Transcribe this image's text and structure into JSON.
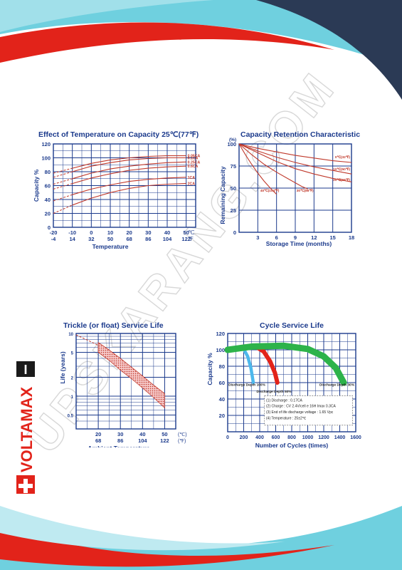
{
  "brand": {
    "name": "VOLTAMAX",
    "badge": "I",
    "watermark": "UPSKARANG.COM",
    "colors": {
      "red": "#e2231a",
      "navy": "#2b3a55",
      "cyan": "#6fd0df",
      "grid": "#1b3a8c",
      "curve": "#c0392b"
    }
  },
  "chart_data": [
    {
      "type": "line",
      "title": "Effect of Temperature on Capacity  25℃(77℉)",
      "ylabel": "Capacity %",
      "xlabel": "Temperature",
      "x_ticks_c": [
        "-20",
        "-10",
        "0",
        "10",
        "20",
        "30",
        "40",
        "50"
      ],
      "x_ticks_f": [
        "-4",
        "14",
        "32",
        "50",
        "68",
        "86",
        "104",
        "122"
      ],
      "x_unit_c": "℃",
      "x_unit_f": "℉",
      "xlim": [
        -20,
        55
      ],
      "ylim": [
        0,
        120
      ],
      "y_ticks": [
        "0",
        "20",
        "40",
        "60",
        "80",
        "100",
        "120"
      ],
      "series": [
        {
          "name": "0.05CA",
          "values": [
            [
              -20,
              78
            ],
            [
              -10,
              85
            ],
            [
              0,
              92
            ],
            [
              10,
              97
            ],
            [
              20,
              100
            ],
            [
              30,
              102
            ],
            [
              40,
              103
            ],
            [
              50,
              103
            ]
          ]
        },
        {
          "name": "0.1CA",
          "values": [
            [
              -20,
              72
            ],
            [
              -10,
              80
            ],
            [
              0,
              88
            ],
            [
              10,
              93
            ],
            [
              20,
              97
            ],
            [
              30,
              99
            ],
            [
              40,
              100
            ],
            [
              50,
              100
            ]
          ]
        },
        {
          "name": "0.25CA",
          "values": [
            [
              -20,
              62
            ],
            [
              -10,
              70
            ],
            [
              0,
              78
            ],
            [
              10,
              84
            ],
            [
              20,
              88
            ],
            [
              30,
              91
            ],
            [
              40,
              93
            ],
            [
              50,
              94
            ]
          ]
        },
        {
          "name": "0.6CA",
          "values": [
            [
              -20,
              55
            ],
            [
              -10,
              63
            ],
            [
              0,
              71
            ],
            [
              10,
              77
            ],
            [
              20,
              82
            ],
            [
              30,
              85
            ],
            [
              40,
              87
            ],
            [
              50,
              88
            ]
          ]
        },
        {
          "name": "1CA",
          "values": [
            [
              -20,
              38
            ],
            [
              -10,
              47
            ],
            [
              0,
              55
            ],
            [
              10,
              61
            ],
            [
              20,
              66
            ],
            [
              30,
              69
            ],
            [
              40,
              71
            ],
            [
              50,
              72
            ]
          ]
        },
        {
          "name": "2CA",
          "values": [
            [
              -20,
              20
            ],
            [
              -10,
              32
            ],
            [
              0,
              42
            ],
            [
              10,
              50
            ],
            [
              20,
              56
            ],
            [
              30,
              60
            ],
            [
              40,
              62
            ],
            [
              50,
              63
            ]
          ]
        }
      ]
    },
    {
      "type": "line",
      "title": "Capacity Retention Characteristic",
      "ylabel": "Remaining Capacity",
      "y_unit": "(%)",
      "xlabel": "Storage Time (months)",
      "x_ticks": [
        "0",
        "3",
        "6",
        "9",
        "12",
        "15",
        "18"
      ],
      "xlim": [
        0,
        18
      ],
      "ylim": [
        0,
        100
      ],
      "y_ticks": [
        "0",
        "25",
        "50",
        "75",
        "100"
      ],
      "series": [
        {
          "name": "0℃(32℉)",
          "values": [
            [
              0,
              100
            ],
            [
              3,
              95
            ],
            [
              6,
              91
            ],
            [
              9,
              87
            ],
            [
              12,
              84
            ],
            [
              15,
              81
            ],
            [
              18,
              79
            ]
          ]
        },
        {
          "name": "10℃(50℉)",
          "values": [
            [
              0,
              100
            ],
            [
              3,
              92
            ],
            [
              6,
              85
            ],
            [
              9,
              79
            ],
            [
              12,
              74
            ],
            [
              15,
              70
            ],
            [
              18,
              66
            ]
          ]
        },
        {
          "name": "20℃(68℉)",
          "values": [
            [
              0,
              100
            ],
            [
              3,
              90
            ],
            [
              6,
              80
            ],
            [
              9,
              72
            ],
            [
              12,
              66
            ],
            [
              15,
              61
            ],
            [
              18,
              57
            ]
          ]
        },
        {
          "name": "30℃(86℉)",
          "values": [
            [
              0,
              100
            ],
            [
              2,
              88
            ],
            [
              4,
              77
            ],
            [
              6,
              68
            ],
            [
              8,
              60
            ],
            [
              10,
              52
            ],
            [
              11,
              49
            ]
          ]
        },
        {
          "name": "40℃(104℉)",
          "values": [
            [
              0,
              100
            ],
            [
              1,
              88
            ],
            [
              2,
              77
            ],
            [
              3,
              67
            ],
            [
              4,
              58
            ],
            [
              5,
              50
            ],
            [
              6,
              43
            ]
          ]
        }
      ]
    },
    {
      "type": "area",
      "title": "Trickle (or float) Service Life",
      "ylabel": "Life (years)",
      "xlabel": "Ambient Temperature",
      "x_ticks_c": [
        "20",
        "30",
        "40",
        "50"
      ],
      "x_ticks_f": [
        "68",
        "86",
        "104",
        "122"
      ],
      "x_unit_c": "(℃)",
      "x_unit_f": "(℉)",
      "xlim": [
        10,
        55
      ],
      "ylim": [
        0.3,
        10
      ],
      "log_scale": true,
      "y_ticks": [
        "0.5",
        "1",
        "2",
        "5",
        "10"
      ],
      "band_upper": [
        [
          20,
          7.2
        ],
        [
          25,
          5.4
        ],
        [
          30,
          4.0
        ],
        [
          35,
          2.9
        ],
        [
          40,
          2.1
        ],
        [
          45,
          1.5
        ],
        [
          50,
          1.1
        ]
      ],
      "band_lower": [
        [
          20,
          5.0
        ],
        [
          25,
          3.7
        ],
        [
          30,
          2.6
        ],
        [
          35,
          1.9
        ],
        [
          40,
          1.35
        ],
        [
          45,
          0.95
        ],
        [
          50,
          0.65
        ]
      ],
      "dashed": [
        [
          10,
          9.5
        ],
        [
          20,
          6.5
        ]
      ]
    },
    {
      "type": "line",
      "title": "Cycle Service Life",
      "ylabel": "Capacity %",
      "xlabel": "Number of Cycles (times)",
      "x_ticks": [
        "0",
        "200",
        "400",
        "600",
        "800",
        "1000",
        "1200",
        "1400",
        "1600"
      ],
      "xlim": [
        0,
        1600
      ],
      "ylim": [
        0,
        120
      ],
      "y_ticks": [
        "20",
        "40",
        "60",
        "80",
        "100",
        "120"
      ],
      "series": [
        {
          "name": "Discharge Depth 100%",
          "color": "#4db8ec",
          "values": [
            [
              0,
              100
            ],
            [
              100,
              103
            ],
            [
              200,
              101
            ],
            [
              250,
              92
            ],
            [
              290,
              78
            ],
            [
              320,
              60
            ]
          ]
        },
        {
          "name": "Discharge Depth 50%",
          "color": "#e2231a",
          "values": [
            [
              0,
              100
            ],
            [
              200,
              104
            ],
            [
              350,
              104
            ],
            [
              450,
              98
            ],
            [
              530,
              86
            ],
            [
              590,
              72
            ],
            [
              620,
              60
            ]
          ]
        },
        {
          "name": "Discharge Depth 30%",
          "color": "#2db34a",
          "values": [
            [
              0,
              100
            ],
            [
              300,
              104
            ],
            [
              700,
              105
            ],
            [
              1000,
              101
            ],
            [
              1200,
              92
            ],
            [
              1350,
              78
            ],
            [
              1450,
              60
            ]
          ]
        }
      ],
      "notes": [
        "(1) Discharge : 0.17CA",
        "(2) Charge : CV 2.4V/cell e 16H Imax 0.3CA",
        "(3) End of life discharge voltage : 1.65 Vpc",
        "(4) Temperature : 25±2℃"
      ]
    }
  ]
}
